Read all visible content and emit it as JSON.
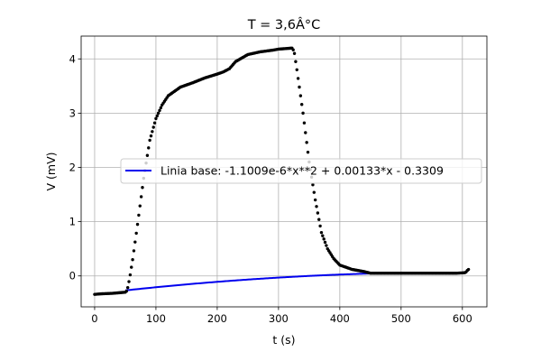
{
  "chart_data": {
    "type": "scatter",
    "title": "T = 3,6Â°C",
    "xlabel": "t (s)",
    "ylabel": "V (mV)",
    "xlim": [
      -22,
      640
    ],
    "ylim": [
      -0.57,
      4.42
    ],
    "x_ticks": [
      0,
      100,
      200,
      300,
      400,
      500,
      600
    ],
    "y_ticks": [
      0,
      1,
      2,
      3,
      4
    ],
    "x_tick_labels": [
      "0",
      "100",
      "200",
      "300",
      "400",
      "500",
      "600"
    ],
    "y_tick_labels": [
      "0",
      "1",
      "2",
      "3",
      "4"
    ],
    "grid": true,
    "legend_position": "center-right",
    "series": [
      {
        "name": "Linia base: -1.1009e-6*x**2 + 0.00133*x - 0.3309",
        "kind": "line",
        "color": "#0000ee",
        "coefficients": [
          -1.1009e-06,
          0.00133,
          -0.3309
        ],
        "x_range": [
          50,
          452
        ]
      },
      {
        "kind": "scatter",
        "color": "#000000",
        "x_range": [
          0,
          610
        ],
        "x_step": 2,
        "curve": [
          [
            0,
            -0.34
          ],
          [
            10,
            -0.33
          ],
          [
            30,
            -0.32
          ],
          [
            50,
            -0.3
          ],
          [
            53,
            -0.27
          ],
          [
            57,
            -0.05
          ],
          [
            62,
            0.3
          ],
          [
            70,
            0.95
          ],
          [
            80,
            1.8
          ],
          [
            90,
            2.5
          ],
          [
            100,
            2.9
          ],
          [
            110,
            3.15
          ],
          [
            120,
            3.32
          ],
          [
            140,
            3.48
          ],
          [
            160,
            3.56
          ],
          [
            180,
            3.65
          ],
          [
            200,
            3.72
          ],
          [
            210,
            3.76
          ],
          [
            220,
            3.82
          ],
          [
            230,
            3.95
          ],
          [
            250,
            4.08
          ],
          [
            270,
            4.13
          ],
          [
            290,
            4.16
          ],
          [
            300,
            4.18
          ],
          [
            323,
            4.2
          ],
          [
            326,
            4.1
          ],
          [
            330,
            3.8
          ],
          [
            340,
            3.0
          ],
          [
            350,
            2.1
          ],
          [
            360,
            1.4
          ],
          [
            370,
            0.8
          ],
          [
            380,
            0.5
          ],
          [
            390,
            0.32
          ],
          [
            400,
            0.2
          ],
          [
            420,
            0.12
          ],
          [
            440,
            0.08
          ],
          [
            450,
            0.05
          ],
          [
            455,
            0.05
          ],
          [
            560,
            0.05
          ],
          [
            590,
            0.05
          ],
          [
            605,
            0.06
          ],
          [
            608,
            0.1
          ],
          [
            610,
            0.12
          ]
        ]
      }
    ]
  }
}
